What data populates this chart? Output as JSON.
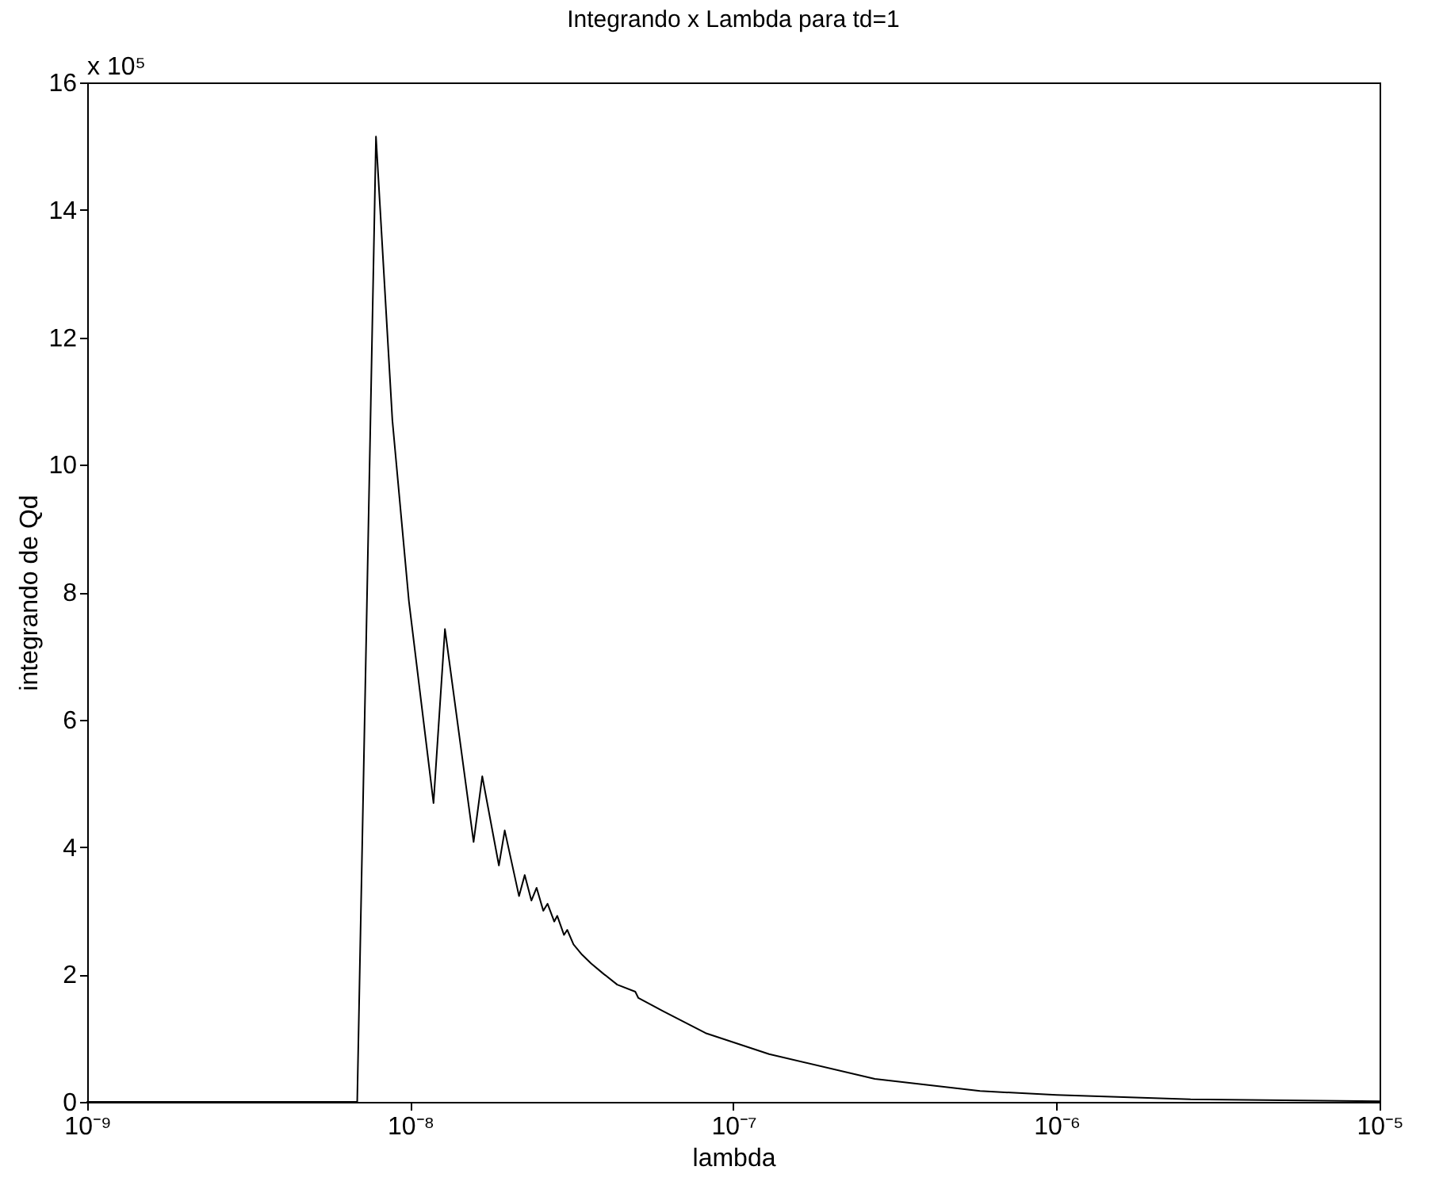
{
  "chart_data": {
    "type": "line",
    "title": "Integrando x Lambda para td=1",
    "xlabel": "lambda",
    "ylabel": "integrando de Qd",
    "annotations": [
      "x 10⁵"
    ],
    "log": "x",
    "grid": false,
    "marker": "none",
    "line_style": "solid",
    "xlim": [
      1e-09,
      1e-05
    ],
    "xticks": [
      {
        "value": 1e-09,
        "label": "10⁻⁹"
      },
      {
        "value": 1e-08,
        "label": "10⁻⁸"
      },
      {
        "value": 1e-07,
        "label": "10⁻⁷"
      },
      {
        "value": 1e-06,
        "label": "10⁻⁶"
      },
      {
        "value": 1e-05,
        "label": "10⁻⁵"
      }
    ],
    "ylim": [
      0,
      16
    ],
    "yticks": [
      0,
      2,
      4,
      6,
      8,
      10,
      12,
      14,
      16
    ],
    "x": [
      1e-09,
      6.85e-09,
      7.83e-09,
      8.8e-09,
      9.9e-09,
      1.18e-08,
      1.28e-08,
      1.57e-08,
      1.67e-08,
      1.88e-08,
      1.96e-08,
      2.17e-08,
      2.26e-08,
      2.37e-08,
      2.46e-08,
      2.58e-08,
      2.66e-08,
      2.79e-08,
      2.85e-08,
      2.99e-08,
      3.06e-08,
      3.2e-08,
      3.4e-08,
      3.63e-08,
      3.94e-08,
      4.37e-08,
      4.97e-08,
      5.08e-08,
      6.03e-08,
      8.2e-08,
      1.29e-07,
      2.74e-07,
      5.8e-07,
      1e-06,
      2.6e-06,
      1e-05
    ],
    "series": [
      {
        "color": "#000000",
        "values": [
          0,
          0,
          15.15,
          10.7,
          7.86,
          4.69,
          7.42,
          4.08,
          5.11,
          3.71,
          4.26,
          3.23,
          3.56,
          3.16,
          3.36,
          3.0,
          3.11,
          2.83,
          2.92,
          2.62,
          2.7,
          2.47,
          2.31,
          2.17,
          2.02,
          1.84,
          1.73,
          1.63,
          1.43,
          1.08,
          0.75,
          0.36,
          0.17,
          0.11,
          0.04,
          0.01
        ]
      }
    ]
  }
}
